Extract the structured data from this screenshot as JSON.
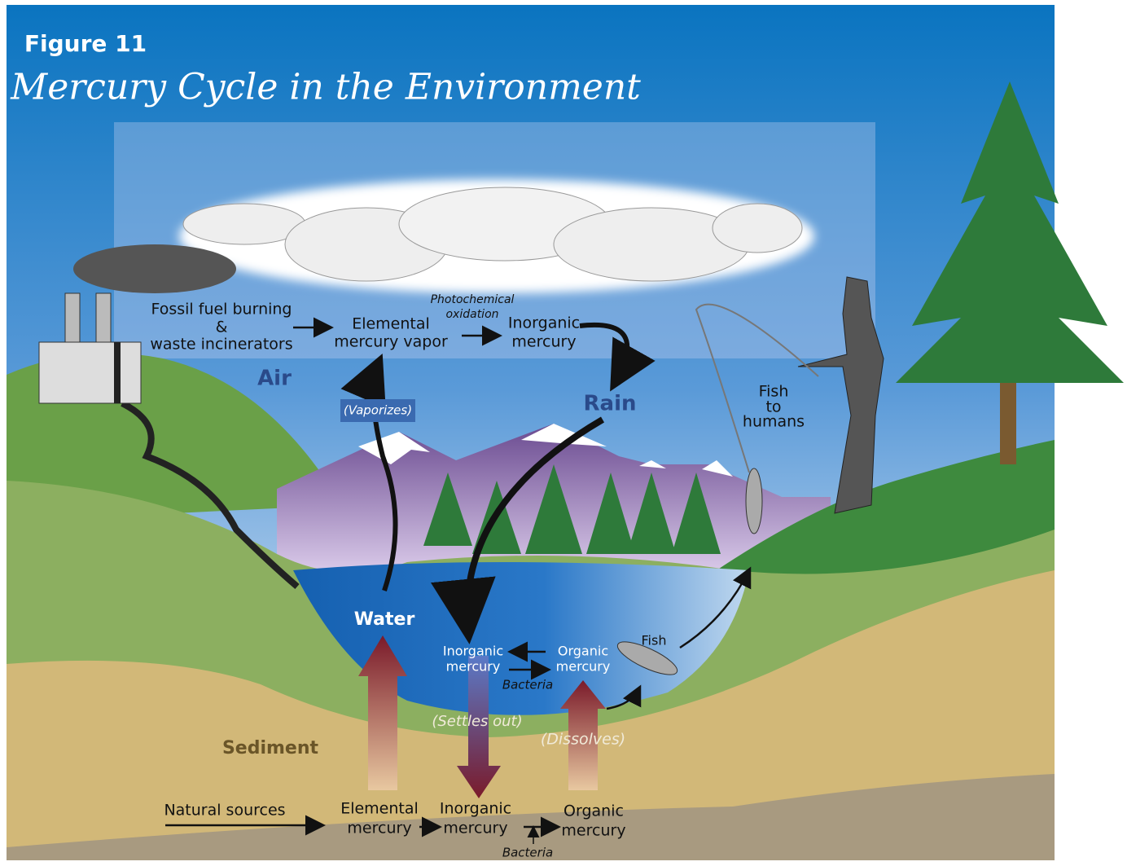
{
  "header": {
    "figure": "Figure 11",
    "title": "Mercury Cycle in the Environment"
  },
  "zones": {
    "air": "Air",
    "rain": "Rain",
    "water": "Water",
    "sediment": "Sediment"
  },
  "air_labels": {
    "source": [
      "Fossil fuel burning",
      "&",
      "waste incinerators"
    ],
    "vapor": [
      "Elemental",
      "mercury vapor"
    ],
    "oxidation": [
      "Photochemical",
      "oxidation"
    ],
    "inorganic": [
      "Inorganic",
      "mercury"
    ],
    "vaporizes": "(Vaporizes)",
    "fish_to_humans": [
      "Fish",
      "to",
      "humans"
    ]
  },
  "water_labels": {
    "inorganic": [
      "Inorganic",
      "mercury"
    ],
    "organic": [
      "Organic",
      "mercury"
    ],
    "bacteria": "Bacteria",
    "fish": "Fish",
    "settles": "(Settles out)",
    "dissolves": "(Dissolves)"
  },
  "sediment_labels": {
    "natural": "Natural sources",
    "elemental": [
      "Elemental",
      "mercury"
    ],
    "inorganic": [
      "Inorganic",
      "mercury"
    ],
    "organic": [
      "Organic",
      "mercury"
    ],
    "bacteria": "Bacteria"
  }
}
